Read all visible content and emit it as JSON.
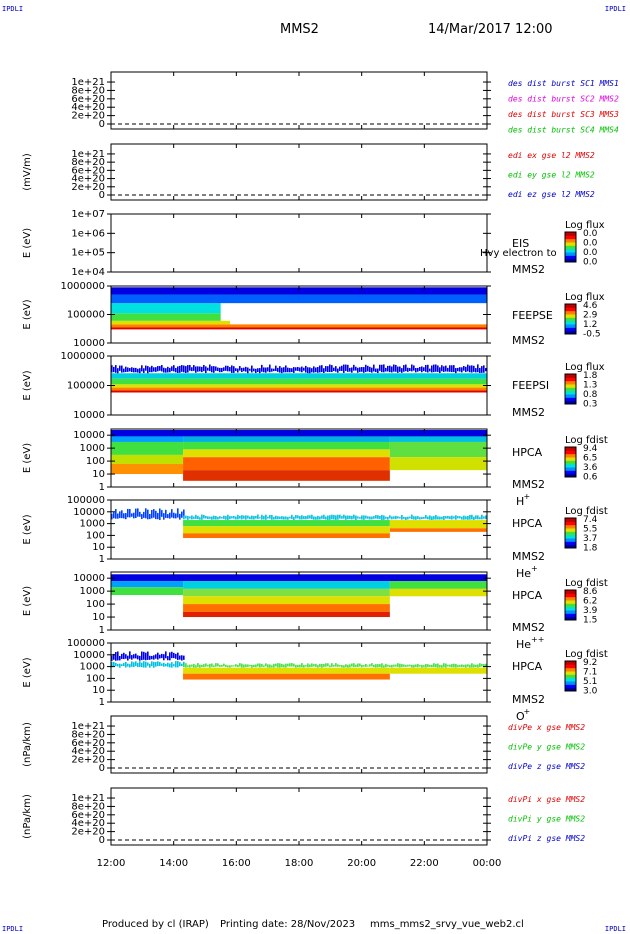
{
  "header": {
    "corner_left_top": "IPDLI",
    "corner_right_top": "IPDLI",
    "corner_left_bottom": "IPDLI",
    "corner_right_bottom": "IPDLI",
    "title": "MMS2",
    "datetime": "14/Mar/2017 12:00"
  },
  "footer": {
    "producer": "Produced by cl (IRAP)",
    "printing": "Printing date: 28/Nov/2023",
    "script": "mms_mms2_srvy_vue_web2.cl"
  },
  "colors": {
    "dark_blue": "#0000c8",
    "magenta": "#e000e0",
    "red": "#e00000",
    "green": "#00c000",
    "spectrogram_palette": [
      "#00008c",
      "#0000ff",
      "#0090ff",
      "#00e0e0",
      "#40e040",
      "#e0e000",
      "#ff8000",
      "#ff0000",
      "#c00000"
    ]
  },
  "chart_data": {
    "x_ticks": [
      "12:00",
      "14:00",
      "16:00",
      "18:00",
      "20:00",
      "22:00",
      "00:00"
    ],
    "x_range_hours": [
      12,
      24
    ],
    "panels": [
      {
        "id": "des-dist-burst",
        "type": "line",
        "ylabel": "",
        "ticks": [
          "1e+21",
          "8e+20",
          "6e+20",
          "4e+20",
          "2e+20",
          "0"
        ],
        "ylim": [
          0,
          1.2e+21
        ],
        "series": [
          {
            "name": "des dist burst SC1 MMS1",
            "color": "#0000c8",
            "values": [
              0,
              0
            ]
          },
          {
            "name": "des dist burst SC2 MMS2",
            "color": "#e000e0",
            "values": [
              0,
              0
            ]
          },
          {
            "name": "des dist burst SC3 MMS3",
            "color": "#e00000",
            "values": [
              0,
              0
            ]
          },
          {
            "name": "des dist burst SC4 MMS4",
            "color": "#00c000",
            "values": [
              0,
              0
            ]
          }
        ]
      },
      {
        "id": "edi-e-gse",
        "type": "line",
        "ylabel": "(mV/m)",
        "ticks": [
          "1e+21",
          "8e+20",
          "6e+20",
          "4e+20",
          "2e+20",
          "0"
        ],
        "ylim": [
          0,
          1.2e+21
        ],
        "series": [
          {
            "name": "edi ex gse l2 MMS2",
            "color": "#e00000",
            "values": [
              0,
              0
            ]
          },
          {
            "name": "edi ey gse l2 MMS2",
            "color": "#00c000",
            "values": [
              0,
              0
            ]
          },
          {
            "name": "edi ez gse l2 MMS2",
            "color": "#0000c8",
            "values": [
              0,
              0
            ]
          }
        ]
      },
      {
        "id": "eis",
        "type": "heatmap",
        "ylabel": "E (eV)",
        "ticks": [
          "1e+07",
          "1e+06",
          "1e+05",
          "1e+04"
        ],
        "ylim": [
          10000,
          10000000
        ],
        "instrument": [
          "EIS",
          "MMS2"
        ],
        "overlay_text": "Hvy electron to",
        "colorbar_label": "Log flux",
        "colorbar_values": [
          "0.0",
          "0.0",
          "0.0",
          "0.0"
        ],
        "fill": []
      },
      {
        "id": "feepse",
        "type": "heatmap",
        "ylabel": "E (eV)",
        "ticks": [
          "1000000",
          "100000",
          "10000"
        ],
        "ylim": [
          10000,
          1000000
        ],
        "instrument": [
          "FEEPSE",
          "MMS2"
        ],
        "colorbar_label": "Log flux",
        "colorbar_values": [
          "4.6",
          "2.9",
          "1.2",
          "-0.5"
        ],
        "fill": [
          {
            "t0": 12.0,
            "t1": 24.0,
            "e_lo": 30000,
            "e_hi": 35000,
            "color": "#e00000"
          },
          {
            "t0": 12.0,
            "t1": 24.0,
            "e_lo": 35000,
            "e_hi": 45000,
            "color": "#ff8000"
          },
          {
            "t0": 12.0,
            "t1": 15.8,
            "e_lo": 45000,
            "e_hi": 60000,
            "color": "#e0e000"
          },
          {
            "t0": 12.0,
            "t1": 15.5,
            "e_lo": 60000,
            "e_hi": 110000,
            "color": "#40e040"
          },
          {
            "t0": 12.0,
            "t1": 15.5,
            "e_lo": 110000,
            "e_hi": 250000,
            "color": "#00e0e0"
          },
          {
            "t0": 12.0,
            "t1": 24.0,
            "e_lo": 250000,
            "e_hi": 500000,
            "color": "#0060ff"
          },
          {
            "t0": 12.0,
            "t1": 24.0,
            "e_lo": 500000,
            "e_hi": 900000,
            "color": "#0000e0"
          }
        ]
      },
      {
        "id": "feepsi",
        "type": "heatmap",
        "ylabel": "E (eV)",
        "ticks": [
          "1000000",
          "100000",
          "10000"
        ],
        "ylim": [
          10000,
          1000000
        ],
        "instrument": [
          "FEEPSI",
          "MMS2"
        ],
        "colorbar_label": "Log flux",
        "colorbar_values": [
          "1.8",
          "1.3",
          "0.8",
          "0.3"
        ],
        "fill": [
          {
            "t0": 12.0,
            "t1": 24.0,
            "e_lo": 58000,
            "e_hi": 68000,
            "color": "#e00000"
          },
          {
            "t0": 12.0,
            "t1": 24.0,
            "e_lo": 68000,
            "e_hi": 85000,
            "color": "#ff8000"
          },
          {
            "t0": 12.0,
            "t1": 24.0,
            "e_lo": 85000,
            "e_hi": 110000,
            "color": "#e0e000"
          },
          {
            "t0": 12.0,
            "t1": 24.0,
            "e_lo": 110000,
            "e_hi": 170000,
            "color": "#40e040"
          },
          {
            "t0": 12.0,
            "t1": 24.0,
            "e_lo": 170000,
            "e_hi": 260000,
            "color": "#00d0e0"
          },
          {
            "t0": 12.0,
            "t1": 24.0,
            "e_lo": 260000,
            "e_hi": 520000,
            "color": "#0000e0",
            "speckle": true
          }
        ]
      },
      {
        "id": "hpca-h",
        "type": "heatmap",
        "ylabel": "E (eV)",
        "ticks": [
          "10000",
          "1000",
          "100",
          "10",
          "1"
        ],
        "ylim": [
          1,
          30000
        ],
        "instrument": [
          "HPCA",
          "MMS2"
        ],
        "species": "H",
        "species_charge": "+",
        "colorbar_label": "Log fdist",
        "colorbar_values": [
          "9.4",
          "6.5",
          "3.6",
          "0.6"
        ],
        "fill": [
          {
            "t0": 12.0,
            "t1": 24.0,
            "e_lo": 8000,
            "e_hi": 25000,
            "color": "#0000e0"
          },
          {
            "t0": 12.0,
            "t1": 14.3,
            "e_lo": 3000,
            "e_hi": 8000,
            "color": "#00a0ff"
          },
          {
            "t0": 12.0,
            "t1": 14.3,
            "e_lo": 300,
            "e_hi": 3000,
            "color": "#40e040"
          },
          {
            "t0": 12.0,
            "t1": 14.3,
            "e_lo": 60,
            "e_hi": 300,
            "color": "#c0e000"
          },
          {
            "t0": 12.0,
            "t1": 14.3,
            "e_lo": 10,
            "e_hi": 60,
            "color": "#ff9000"
          },
          {
            "t0": 14.3,
            "t1": 20.9,
            "e_lo": 3000,
            "e_hi": 8000,
            "color": "#00b0e0"
          },
          {
            "t0": 14.3,
            "t1": 20.9,
            "e_lo": 800,
            "e_hi": 3000,
            "color": "#40e040"
          },
          {
            "t0": 14.3,
            "t1": 20.9,
            "e_lo": 200,
            "e_hi": 800,
            "color": "#e0e000"
          },
          {
            "t0": 14.3,
            "t1": 20.9,
            "e_lo": 20,
            "e_hi": 200,
            "color": "#ff6000"
          },
          {
            "t0": 14.3,
            "t1": 20.9,
            "e_lo": 3,
            "e_hi": 20,
            "color": "#e03000"
          },
          {
            "t0": 20.9,
            "t1": 24.0,
            "e_lo": 3000,
            "e_hi": 8000,
            "color": "#00c0e0"
          },
          {
            "t0": 20.9,
            "t1": 24.0,
            "e_lo": 200,
            "e_hi": 3000,
            "color": "#60e040"
          },
          {
            "t0": 20.9,
            "t1": 24.0,
            "e_lo": 20,
            "e_hi": 200,
            "color": "#d0e000"
          }
        ]
      },
      {
        "id": "hpca-he",
        "type": "heatmap",
        "ylabel": "E (eV)",
        "ticks": [
          "100000",
          "10000",
          "1000",
          "100",
          "10",
          "1"
        ],
        "ylim": [
          1,
          100000
        ],
        "instrument": [
          "HPCA",
          "MMS2"
        ],
        "species": "He",
        "species_charge": "+",
        "colorbar_label": "Log fdist",
        "colorbar_values": [
          "7.4",
          "5.5",
          "3.7",
          "1.8"
        ],
        "fill": [
          {
            "t0": 12.0,
            "t1": 14.3,
            "e_lo": 2000,
            "e_hi": 20000,
            "color": "#0040ff",
            "speckle": true
          },
          {
            "t0": 14.3,
            "t1": 24.0,
            "e_lo": 2000,
            "e_hi": 6000,
            "color": "#00c0e0",
            "speckle": true
          },
          {
            "t0": 14.3,
            "t1": 20.9,
            "e_lo": 600,
            "e_hi": 2000,
            "color": "#40e040"
          },
          {
            "t0": 14.3,
            "t1": 20.9,
            "e_lo": 150,
            "e_hi": 600,
            "color": "#e0e000"
          },
          {
            "t0": 14.3,
            "t1": 20.9,
            "e_lo": 60,
            "e_hi": 150,
            "color": "#ff7000"
          },
          {
            "t0": 20.9,
            "t1": 24.0,
            "e_lo": 400,
            "e_hi": 2000,
            "color": "#e0e000"
          },
          {
            "t0": 20.9,
            "t1": 24.0,
            "e_lo": 200,
            "e_hi": 400,
            "color": "#ff7000"
          }
        ]
      },
      {
        "id": "hpca-he2",
        "type": "heatmap",
        "ylabel": "E (eV)",
        "ticks": [
          "10000",
          "1000",
          "100",
          "10",
          "1"
        ],
        "ylim": [
          1,
          30000
        ],
        "instrument": [
          "HPCA",
          "MMS2"
        ],
        "species": "He",
        "species_charge": "++",
        "colorbar_label": "Log fdist",
        "colorbar_values": [
          "8.6",
          "6.2",
          "3.9",
          "1.5"
        ],
        "fill": [
          {
            "t0": 12.0,
            "t1": 24.0,
            "e_lo": 6000,
            "e_hi": 20000,
            "color": "#0000e0"
          },
          {
            "t0": 12.0,
            "t1": 14.3,
            "e_lo": 2000,
            "e_hi": 6000,
            "color": "#00a0ff"
          },
          {
            "t0": 12.0,
            "t1": 14.3,
            "e_lo": 500,
            "e_hi": 2000,
            "color": "#40e040"
          },
          {
            "t0": 14.3,
            "t1": 20.9,
            "e_lo": 1500,
            "e_hi": 6000,
            "color": "#00d0e0"
          },
          {
            "t0": 14.3,
            "t1": 20.9,
            "e_lo": 400,
            "e_hi": 1500,
            "color": "#80e040"
          },
          {
            "t0": 14.3,
            "t1": 20.9,
            "e_lo": 100,
            "e_hi": 400,
            "color": "#e0e000"
          },
          {
            "t0": 14.3,
            "t1": 20.9,
            "e_lo": 25,
            "e_hi": 100,
            "color": "#ff7000"
          },
          {
            "t0": 14.3,
            "t1": 20.9,
            "e_lo": 10,
            "e_hi": 25,
            "color": "#e02000"
          },
          {
            "t0": 20.9,
            "t1": 24.0,
            "e_lo": 1500,
            "e_hi": 6000,
            "color": "#40e040"
          },
          {
            "t0": 20.9,
            "t1": 24.0,
            "e_lo": 400,
            "e_hi": 1500,
            "color": "#e0e000"
          }
        ]
      },
      {
        "id": "hpca-o",
        "type": "heatmap",
        "ylabel": "E (eV)",
        "ticks": [
          "100000",
          "10000",
          "1000",
          "100",
          "10",
          "1"
        ],
        "ylim": [
          1,
          100000
        ],
        "instrument": [
          "HPCA",
          "MMS2"
        ],
        "species": "O",
        "species_charge": "+",
        "colorbar_label": "Log fdist",
        "colorbar_values": [
          "9.2",
          "7.1",
          "5.1",
          "3.0"
        ],
        "fill": [
          {
            "t0": 12.0,
            "t1": 14.3,
            "e_lo": 3000,
            "e_hi": 20000,
            "color": "#0000e0",
            "speckle": true
          },
          {
            "t0": 12.0,
            "t1": 14.3,
            "e_lo": 800,
            "e_hi": 3000,
            "color": "#00c0e0",
            "speckle": true
          },
          {
            "t0": 14.3,
            "t1": 24.0,
            "e_lo": 800,
            "e_hi": 2000,
            "color": "#40e040",
            "speckle": true
          },
          {
            "t0": 14.3,
            "t1": 20.9,
            "e_lo": 250,
            "e_hi": 800,
            "color": "#e0e000"
          },
          {
            "t0": 14.3,
            "t1": 20.9,
            "e_lo": 80,
            "e_hi": 250,
            "color": "#ff7000"
          },
          {
            "t0": 20.9,
            "t1": 24.0,
            "e_lo": 250,
            "e_hi": 800,
            "color": "#e0e000"
          }
        ]
      },
      {
        "id": "divpe-gse",
        "type": "line",
        "ylabel": "(nPa/km)",
        "ticks": [
          "1e+21",
          "8e+20",
          "6e+20",
          "4e+20",
          "2e+20",
          "0"
        ],
        "ylim": [
          0,
          1.2e+21
        ],
        "series": [
          {
            "name": "divPe x gse MMS2",
            "color": "#e00000",
            "values": [
              0,
              0
            ]
          },
          {
            "name": "divPe y gse MMS2",
            "color": "#00c000",
            "values": [
              0,
              0
            ]
          },
          {
            "name": "divPe z gse MMS2",
            "color": "#0000c8",
            "values": [
              0,
              0
            ]
          }
        ]
      },
      {
        "id": "divpi-gse",
        "type": "line",
        "ylabel": "(nPa/km)",
        "ticks": [
          "1e+21",
          "8e+20",
          "6e+20",
          "4e+20",
          "2e+20",
          "0"
        ],
        "ylim": [
          0,
          1.2e+21
        ],
        "series": [
          {
            "name": "divPi x gse MMS2",
            "color": "#e00000",
            "values": [
              0,
              0
            ]
          },
          {
            "name": "divPi y gse MMS2",
            "color": "#00c000",
            "values": [
              0,
              0
            ]
          },
          {
            "name": "divPi z gse MMS2",
            "color": "#0000c8",
            "values": [
              0,
              0
            ]
          }
        ]
      }
    ]
  }
}
